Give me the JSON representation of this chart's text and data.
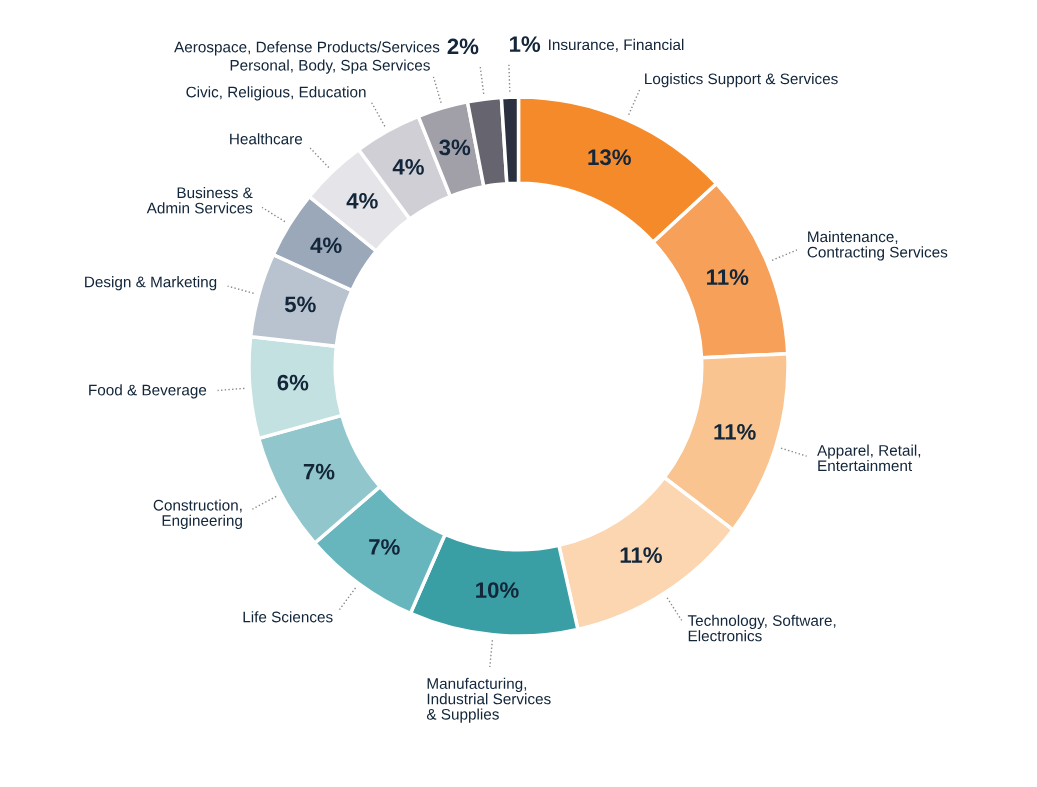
{
  "chart_data": {
    "type": "donut",
    "categories": [
      "Logistics Support & Services",
      "Maintenance,\nContracting Services",
      "Apparel, Retail,\nEntertainment",
      "Technology, Software,\nElectronics",
      "Manufacturing,\nIndustrial Services\n& Supplies",
      "Life Sciences",
      "Construction,\nEngineering",
      "Food & Beverage",
      "Design & Marketing",
      "Business &\nAdmin Services",
      "Healthcare",
      "Civic, Religious, Education",
      "Personal, Body, Spa Services",
      "Aerospace, Defense Products/Services",
      "Insurance, Financial"
    ],
    "values": [
      13,
      11,
      11,
      11,
      10,
      7,
      7,
      6,
      5,
      4,
      4,
      4,
      3,
      2,
      1
    ],
    "value_labels": [
      "13%",
      "11%",
      "11%",
      "11%",
      "10%",
      "7%",
      "7%",
      "6%",
      "5%",
      "4%",
      "4%",
      "4%",
      "3%",
      "2%",
      "1%"
    ],
    "colors": [
      "#f58a2a",
      "#f6a05a",
      "#f9c48f",
      "#fbd6b0",
      "#3a9ea5",
      "#67b6bd",
      "#91c7cc",
      "#c3e1e0",
      "#b8c3cf",
      "#9aa8ba",
      "#e5e4e8",
      "#d0cfd6",
      "#a1a0a8",
      "#66656f",
      "#2b3040"
    ],
    "legend": false
  }
}
